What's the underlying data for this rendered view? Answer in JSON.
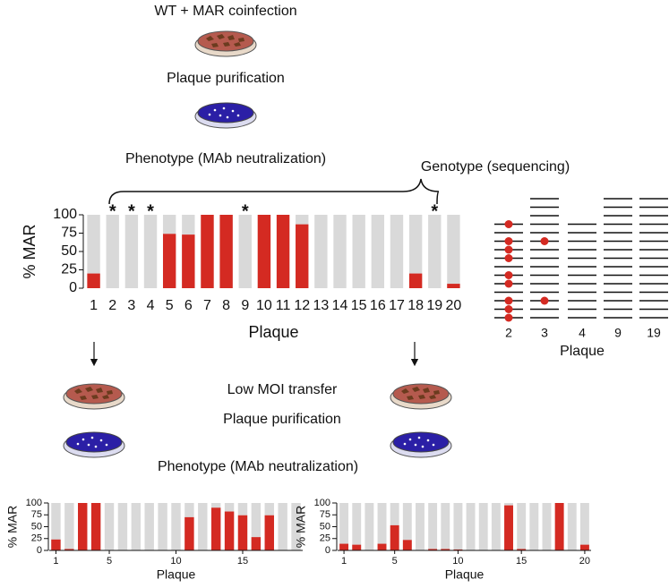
{
  "steps": [
    "WT + MAR coinfection",
    "Plaque purification",
    "Phenotype (MAb neutralization)",
    "Genotype (sequencing)",
    "Low MOI transfer",
    "Plaque purification",
    "Phenotype (MAb neutralization)"
  ],
  "chart_data": [
    {
      "type": "bar",
      "y_label": "% MAR",
      "x_label": "Plaque",
      "categories": [
        "1",
        "2",
        "3",
        "4",
        "5",
        "6",
        "7",
        "8",
        "9",
        "10",
        "11",
        "12",
        "13",
        "14",
        "15",
        "16",
        "17",
        "18",
        "19",
        "20"
      ],
      "values": [
        20,
        0,
        0,
        0,
        74,
        73,
        100,
        100,
        0,
        100,
        100,
        87,
        0,
        0,
        0,
        0,
        0,
        20,
        0,
        6
      ],
      "annotations": [
        {
          "category": "2",
          "text": "*"
        },
        {
          "category": "3",
          "text": "*"
        },
        {
          "category": "4",
          "text": "*"
        },
        {
          "category": "9",
          "text": "*"
        },
        {
          "category": "19",
          "text": "*"
        }
      ],
      "color": "#d42a22",
      "background_color": "#d9d9d9",
      "ylim": [
        0,
        100
      ],
      "yticks": [
        0,
        25,
        50,
        75,
        100
      ]
    },
    {
      "type": "bar",
      "y_label": "% MAR",
      "x_label": "Plaque",
      "categories": [
        "1",
        null,
        null,
        null,
        "5",
        null,
        null,
        null,
        null,
        "10",
        null,
        null,
        null,
        null,
        "15",
        null,
        null,
        null,
        null
      ],
      "values": [
        23,
        3,
        100,
        100,
        0,
        0,
        0,
        0,
        0,
        0,
        70,
        0,
        90,
        82,
        74,
        28,
        74,
        0,
        0
      ],
      "color": "#d42a22",
      "background_color": "#d9d9d9",
      "ylim": [
        0,
        100
      ],
      "yticks": [
        0,
        25,
        50,
        75,
        100
      ]
    },
    {
      "type": "bar",
      "y_label": "% MAR",
      "x_label": "Plaque",
      "categories": [
        "1",
        null,
        null,
        null,
        "5",
        null,
        null,
        null,
        null,
        "10",
        null,
        null,
        null,
        null,
        "15",
        null,
        null,
        null,
        null,
        "20"
      ],
      "values": [
        14,
        12,
        0,
        14,
        53,
        22,
        0,
        3,
        3,
        2,
        0,
        0,
        0,
        95,
        3,
        0,
        0,
        100,
        0,
        12
      ],
      "color": "#d42a22",
      "background_color": "#d9d9d9",
      "ylim": [
        0,
        100
      ],
      "yticks": [
        0,
        25,
        50,
        75,
        100
      ]
    }
  ],
  "genotype": {
    "x_label": "Plaque",
    "columns": [
      {
        "label": "2",
        "lines": 12,
        "mutations": [
          0,
          2,
          3,
          4,
          6,
          7,
          9,
          10,
          11
        ]
      },
      {
        "label": "3",
        "lines": 15,
        "mutations": [
          5,
          12
        ]
      },
      {
        "label": "4",
        "lines": 12,
        "mutations": []
      },
      {
        "label": "9",
        "lines": 15,
        "mutations": []
      },
      {
        "label": "19",
        "lines": 15,
        "mutations": []
      }
    ]
  }
}
